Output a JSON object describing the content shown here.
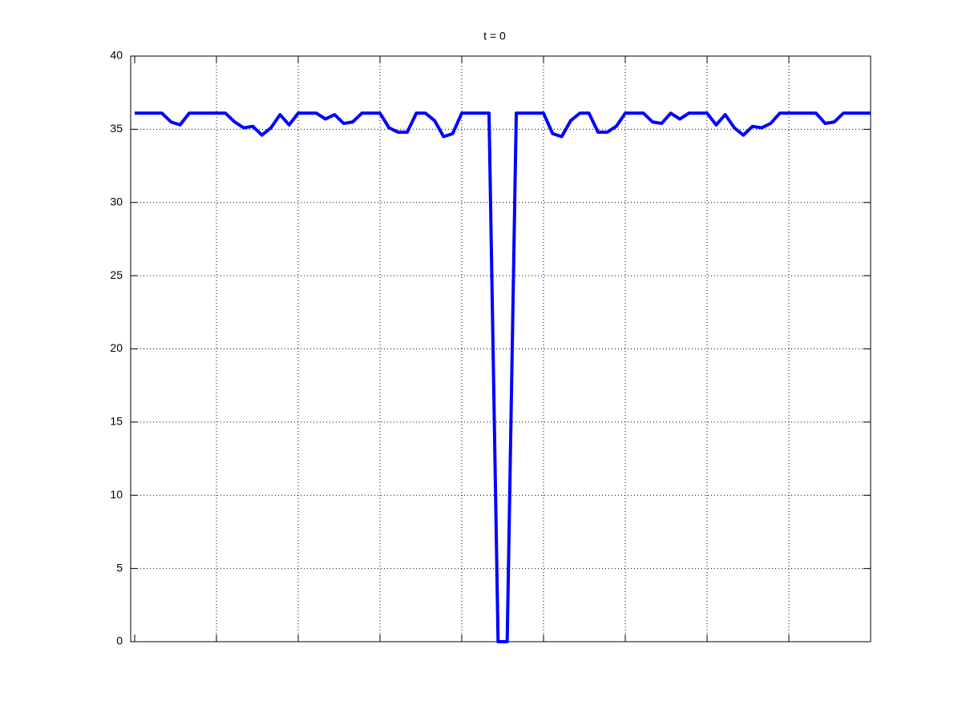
{
  "chart_data": {
    "type": "line",
    "title": "t = 0",
    "values": [
      36.1,
      36.1,
      36.1,
      36.1,
      35.5,
      35.3,
      36.1,
      36.1,
      36.1,
      36.1,
      36.1,
      35.5,
      35.1,
      35.2,
      34.6,
      35.1,
      36.0,
      35.3,
      36.1,
      36.1,
      36.1,
      35.7,
      36.0,
      35.4,
      35.5,
      36.1,
      36.1,
      36.1,
      35.1,
      34.8,
      34.8,
      36.1,
      36.1,
      35.6,
      34.5,
      34.7,
      36.1,
      36.1,
      36.1,
      36.1,
      0,
      0,
      36.1,
      36.1,
      36.1,
      36.1,
      34.7,
      34.5,
      35.6,
      36.1,
      36.1,
      34.8,
      34.8,
      35.2,
      36.1,
      36.1,
      36.1,
      35.5,
      35.4,
      36.1,
      35.7,
      36.1,
      36.1,
      36.1,
      35.3,
      36.0,
      35.1,
      34.6,
      35.2,
      35.1,
      35.4,
      36.1,
      36.1,
      36.1,
      36.1,
      36.1,
      35.4,
      35.5,
      36.1,
      36.1,
      36.1,
      36.1
    ],
    "color": "#0000ff",
    "ylim": [
      0,
      40
    ],
    "yticks": [
      0,
      5,
      10,
      15,
      20,
      25,
      30,
      35,
      40
    ],
    "grid": true
  }
}
